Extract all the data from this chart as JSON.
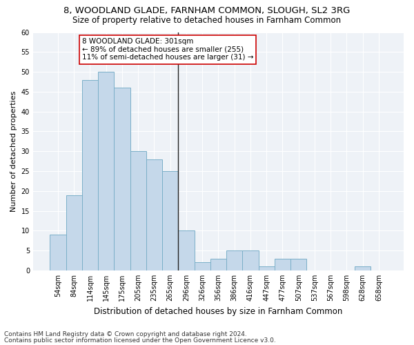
{
  "title1": "8, WOODLAND GLADE, FARNHAM COMMON, SLOUGH, SL2 3RG",
  "title2": "Size of property relative to detached houses in Farnham Common",
  "xlabel": "Distribution of detached houses by size in Farnham Common",
  "ylabel": "Number of detached properties",
  "footnote1": "Contains HM Land Registry data © Crown copyright and database right 2024.",
  "footnote2": "Contains public sector information licensed under the Open Government Licence v3.0.",
  "annotation_line1": "8 WOODLAND GLADE: 301sqm",
  "annotation_line2": "← 89% of detached houses are smaller (255)",
  "annotation_line3": "11% of semi-detached houses are larger (31) →",
  "bar_color": "#c5d8ea",
  "bar_edge_color": "#7aafc8",
  "vline_color": "#222222",
  "annotation_box_edge": "#cc0000",
  "categories": [
    "54sqm",
    "84sqm",
    "114sqm",
    "145sqm",
    "175sqm",
    "205sqm",
    "235sqm",
    "265sqm",
    "296sqm",
    "326sqm",
    "356sqm",
    "386sqm",
    "416sqm",
    "447sqm",
    "477sqm",
    "507sqm",
    "537sqm",
    "567sqm",
    "598sqm",
    "628sqm",
    "658sqm"
  ],
  "values": [
    9,
    19,
    48,
    50,
    46,
    30,
    28,
    25,
    10,
    2,
    3,
    5,
    5,
    1,
    3,
    3,
    0,
    0,
    0,
    1,
    0
  ],
  "ylim": [
    0,
    60
  ],
  "yticks": [
    0,
    5,
    10,
    15,
    20,
    25,
    30,
    35,
    40,
    45,
    50,
    55,
    60
  ],
  "vline_index": 8,
  "bg_color": "#eef2f7",
  "grid_color": "#ffffff",
  "title1_fontsize": 9.5,
  "title2_fontsize": 8.5,
  "ylabel_fontsize": 8,
  "xlabel_fontsize": 8.5,
  "tick_fontsize": 7,
  "annotation_fontsize": 7.5,
  "footnote_fontsize": 6.5
}
